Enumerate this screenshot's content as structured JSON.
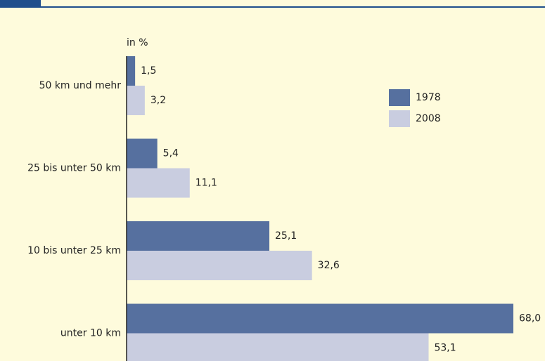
{
  "chart_data": {
    "type": "hbar",
    "axis_label": "in %",
    "categories": [
      "50 km und mehr",
      "25 bis unter 50 km",
      "10 bis unter 25 km",
      "unter 10 km"
    ],
    "series": [
      {
        "name": "1978",
        "color": "#56709f",
        "values": [
          1.5,
          5.4,
          25.1,
          68.0
        ],
        "value_labels": [
          "1,5",
          "5,4",
          "25,1",
          "68,0"
        ]
      },
      {
        "name": "2008",
        "color": "#c9cde0",
        "values": [
          3.2,
          11.1,
          32.6,
          53.1
        ],
        "value_labels": [
          "3,2",
          "11,1",
          "32,6",
          "53,1"
        ]
      }
    ],
    "xlim": [
      0,
      68
    ],
    "legend": "upper right"
  }
}
